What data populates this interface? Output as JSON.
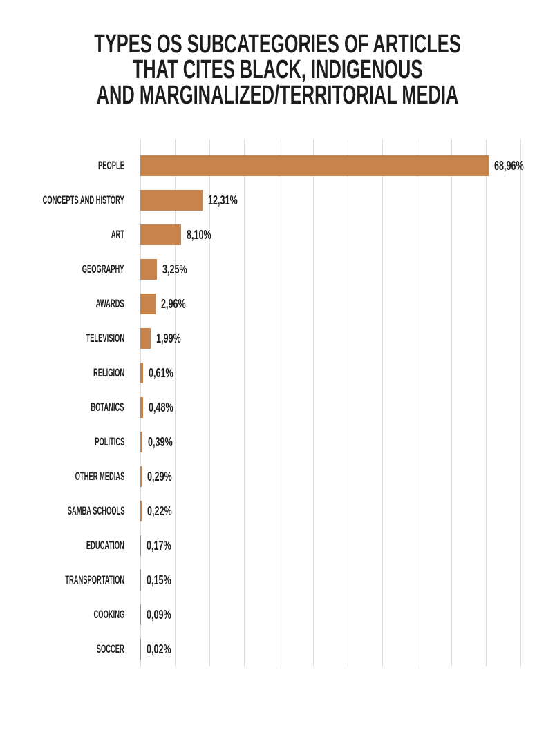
{
  "title": {
    "lines": [
      "TYPES OS SUBCATEGORIES OF ARTICLES",
      "THAT CITES BLACK, INDIGENOUS",
      "AND MARGINALIZED/TERRITORIAL MEDIA"
    ]
  },
  "colors": {
    "bar": "#c8834b",
    "gridline": "#dcdcdc",
    "text": "#1d1d1d",
    "background": "#ffffff"
  },
  "chart_data": {
    "type": "bar",
    "orientation": "horizontal",
    "title": "TYPES OS SUBCATEGORIES OF ARTICLES THAT CITES BLACK, INDIGENOUS AND MARGINALIZED/TERRITORIAL MEDIA",
    "categories": [
      "PEOPLE",
      "CONCEPTS AND HISTORY",
      "ART",
      "GEOGRAPHY",
      "AWARDS",
      "TELEVISION",
      "RELIGION",
      "BOTANICS",
      "POLITICS",
      "OTHER MEDIAS",
      "SAMBA SCHOOLS",
      "EDUCATION",
      "TRANSPORTATION",
      "COOKING",
      "SOCCER"
    ],
    "values": [
      68.96,
      12.31,
      8.1,
      3.25,
      2.96,
      1.99,
      0.61,
      0.48,
      0.39,
      0.29,
      0.22,
      0.17,
      0.15,
      0.09,
      0.02
    ],
    "value_labels": [
      "68,96%",
      "12,31%",
      "8,10%",
      "3,25%",
      "2,96%",
      "1,99%",
      "0,61%",
      "0,48%",
      "0,39%",
      "0,29%",
      "0,22%",
      "0,17%",
      "0,15%",
      "0,09%",
      "0,02%"
    ],
    "xlabel": "",
    "ylabel": "",
    "xlim": [
      0,
      75.3
    ],
    "grid": "vertical",
    "legend": "none",
    "data_labels": "outside-end"
  }
}
